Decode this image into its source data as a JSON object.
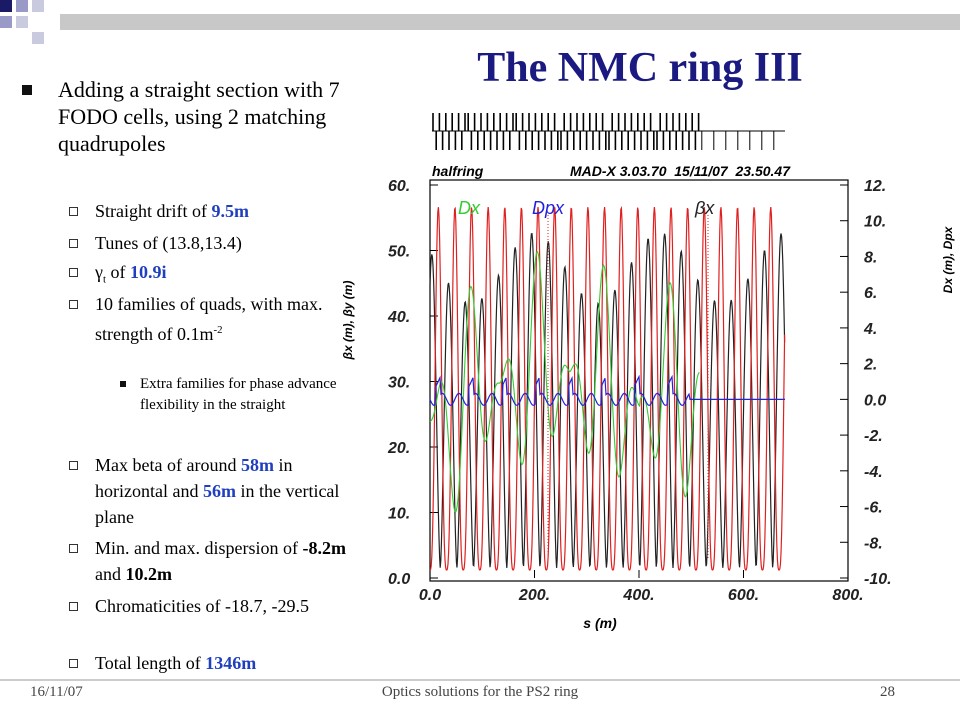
{
  "slide": {
    "title": "The NMC ring III",
    "bullets": [
      {
        "level": 1,
        "segments": [
          {
            "text": "Adding a straight section with 7 FODO cells, using 2 matching quadrupoles"
          }
        ]
      },
      {
        "level": 2,
        "segments": [
          {
            "text": "Straight drift of "
          },
          {
            "text": "9.5m",
            "bold": true,
            "color": "#1f3fbf"
          }
        ]
      },
      {
        "level": 2,
        "segments": [
          {
            "text": "Tunes of (13.8,13.4)"
          }
        ]
      },
      {
        "level": 2,
        "segments": [
          {
            "text": "γ"
          },
          {
            "text": "t",
            "sub": true
          },
          {
            "text": " of "
          },
          {
            "text": "10.9i",
            "bold": true,
            "color": "#1f3fbf"
          }
        ]
      },
      {
        "level": 2,
        "segments": [
          {
            "text": "10 families of quads, with max. strength of 0.1m"
          },
          {
            "text": "-2",
            "sup": true
          }
        ]
      },
      {
        "level": 3,
        "segments": [
          {
            "text": "Extra families for phase advance flexibility in the straight"
          }
        ]
      },
      {
        "level": 2,
        "segments": [
          {
            "text": "Max beta of around "
          },
          {
            "text": "58m",
            "bold": true,
            "color": "#1f3fbf"
          },
          {
            "text": " in horizontal and "
          },
          {
            "text": "56m",
            "bold": true,
            "color": "#1f3fbf"
          },
          {
            "text": " in the vertical plane"
          }
        ]
      },
      {
        "level": 2,
        "segments": [
          {
            "text": "Min. and max. dispersion of "
          },
          {
            "text": "-8.2m",
            "bold": true
          },
          {
            "text": " and "
          },
          {
            "text": "10.2m",
            "bold": true
          }
        ]
      },
      {
        "level": 2,
        "segments": [
          {
            "text": "Chromaticities of -18.7, -29.5"
          }
        ]
      },
      {
        "level": 2,
        "segments": [
          {
            "text": "Total length of "
          },
          {
            "text": "1346m",
            "bold": true,
            "color": "#1f3fbf"
          }
        ]
      }
    ],
    "footer": {
      "date": "16/11/07",
      "text": "Optics solutions for the PS2 ring",
      "page": "28"
    }
  },
  "chart_data": {
    "type": "line",
    "header_left": "halfring",
    "header_right": "MAD-X 3.03.70  15/11/07  23.50.47",
    "xlabel": "s (m)",
    "ylabel": "βx (m), βy (m)",
    "y2label": "Dx (m), Dpx",
    "xlim": [
      0,
      800
    ],
    "xticks": [
      {
        "value": 0,
        "label": "0.0"
      },
      {
        "value": 200,
        "label": "200."
      },
      {
        "value": 400,
        "label": "400."
      },
      {
        "value": 600,
        "label": "600."
      },
      {
        "value": 800,
        "label": "800."
      }
    ],
    "ylim": [
      0,
      60
    ],
    "yticks": [
      {
        "value": 0,
        "label": "0.0"
      },
      {
        "value": 10,
        "label": "10."
      },
      {
        "value": 20,
        "label": "20."
      },
      {
        "value": 30,
        "label": "30."
      },
      {
        "value": 40,
        "label": "40."
      },
      {
        "value": 50,
        "label": "50."
      },
      {
        "value": 60,
        "label": "60."
      }
    ],
    "y2lim": [
      -10,
      12
    ],
    "y2ticks": [
      {
        "value": -10,
        "label": "-10."
      },
      {
        "value": -8,
        "label": "-8."
      },
      {
        "value": -6,
        "label": "-6."
      },
      {
        "value": -4,
        "label": "-4."
      },
      {
        "value": -2,
        "label": "-2."
      },
      {
        "value": 0,
        "label": "0.0"
      },
      {
        "value": 2,
        "label": "2."
      },
      {
        "value": 4,
        "label": "4."
      },
      {
        "value": 6,
        "label": "6."
      },
      {
        "value": 8,
        "label": "8."
      },
      {
        "value": 10,
        "label": "10."
      },
      {
        "value": 12,
        "label": "12."
      }
    ],
    "series": [
      {
        "name": "Dx",
        "color": "#33cc33"
      },
      {
        "name": "Dpx",
        "color": "#2222dd"
      },
      {
        "name": "βx",
        "color": "#e02020"
      }
    ]
  }
}
